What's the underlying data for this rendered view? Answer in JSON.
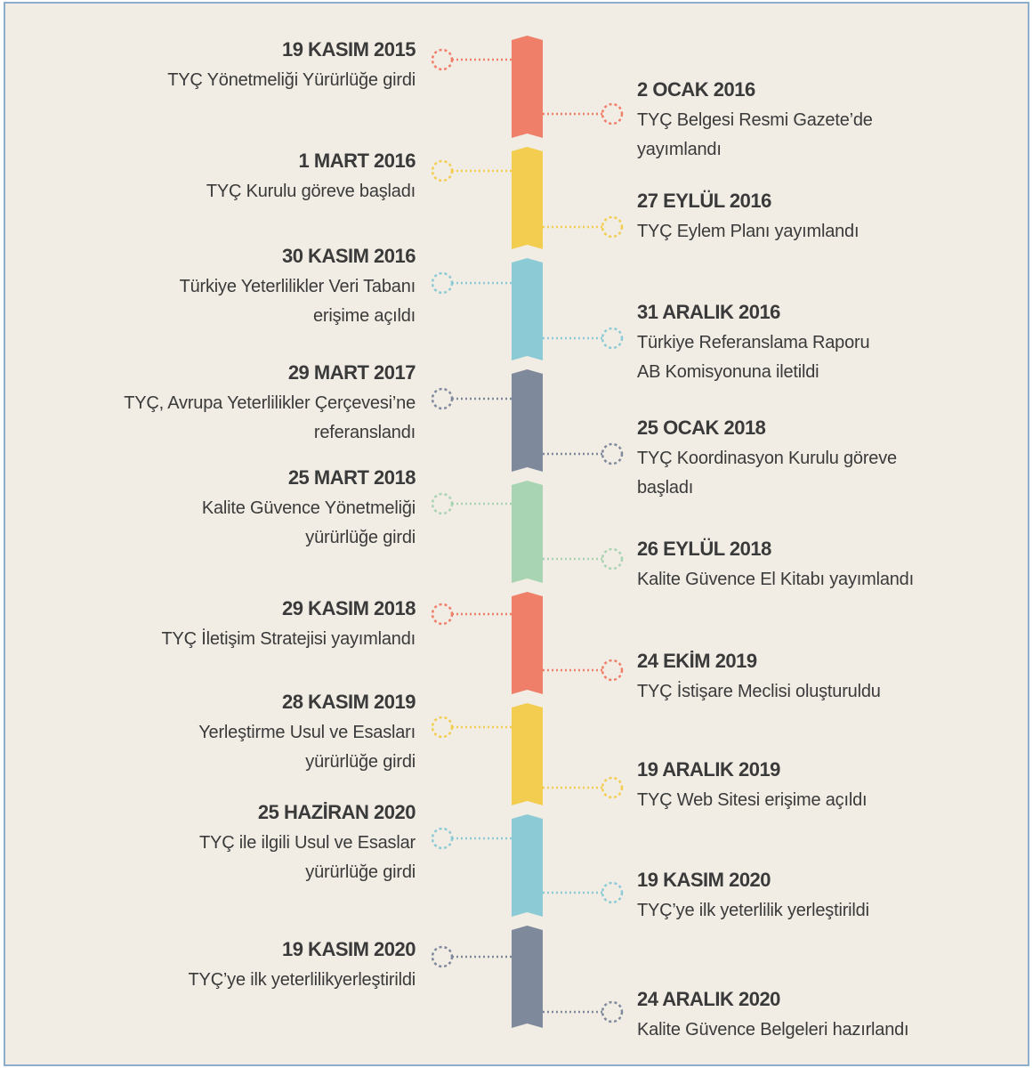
{
  "events": [
    {
      "date": "19 KASIM 2015",
      "lines": [
        "TYÇ Yönetmeliği Yürürlüğe girdi"
      ]
    },
    {
      "date": "2 OCAK 2016",
      "lines": [
        "TYÇ Belgesi Resmi Gazete’de",
        "yayımlandı"
      ]
    },
    {
      "date": "1 MART 2016",
      "lines": [
        "TYÇ Kurulu göreve başladı"
      ]
    },
    {
      "date": "27 EYLÜL 2016",
      "lines": [
        "TYÇ Eylem Planı yayımlandı"
      ]
    },
    {
      "date": "30 KASIM 2016",
      "lines": [
        "Türkiye Yeterlilikler Veri Tabanı",
        "erişime açıldı"
      ]
    },
    {
      "date": "31 ARALIK 2016",
      "lines": [
        "Türkiye Referanslama Raporu",
        "AB Komisyonuna iletildi"
      ]
    },
    {
      "date": "29 MART 2017",
      "lines": [
        "TYÇ, Avrupa Yeterlilikler Çerçevesi’ne",
        "referanslandı"
      ]
    },
    {
      "date": "25 OCAK 2018",
      "lines": [
        "TYÇ Koordinasyon Kurulu göreve",
        "başladı"
      ]
    },
    {
      "date": "25 MART 2018",
      "lines": [
        "Kalite Güvence Yönetmeliği",
        "yürürlüğe girdi"
      ]
    },
    {
      "date": "26 EYLÜL 2018",
      "lines": [
        "Kalite Güvence El Kitabı yayımlandı"
      ]
    },
    {
      "date": "29 KASIM 2018",
      "lines": [
        "TYÇ İletişim Stratejisi yayımlandı"
      ]
    },
    {
      "date": "24 EKİM 2019",
      "lines": [
        "TYÇ İstişare Meclisi oluşturuldu"
      ]
    },
    {
      "date": "28 KASIM 2019",
      "lines": [
        "Yerleştirme Usul ve Esasları",
        "yürürlüğe girdi"
      ]
    },
    {
      "date": "19 ARALIK 2019",
      "lines": [
        "TYÇ Web Sitesi erişime açıldı"
      ]
    },
    {
      "date": "25 HAZİRAN 2020",
      "lines": [
        "TYÇ ile ilgili Usul ve Esaslar",
        "yürürlüğe girdi"
      ]
    },
    {
      "date": "19 KASIM 2020",
      "lines": [
        "TYÇ’ye ilk yeterlilik yerleştirildi"
      ]
    },
    {
      "date": "19 KASIM 2020",
      "lines": [
        "TYÇ’ye ilk yeterlilikyerleştirildi"
      ]
    },
    {
      "date": "24 ARALIK 2020",
      "lines": [
        "Kalite Güvence Belgeleri hazırlandı"
      ]
    }
  ]
}
